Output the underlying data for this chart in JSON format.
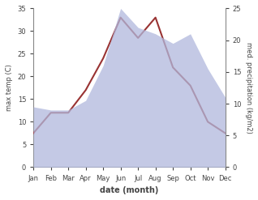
{
  "months": [
    "Jan",
    "Feb",
    "Mar",
    "Apr",
    "May",
    "Jun",
    "Jul",
    "Aug",
    "Sep",
    "Oct",
    "Nov",
    "Dec"
  ],
  "max_temp": [
    7.5,
    12.0,
    12.0,
    17.0,
    24.0,
    33.0,
    28.5,
    33.0,
    22.0,
    18.0,
    10.0,
    7.5
  ],
  "precipitation": [
    9.5,
    9.0,
    9.0,
    10.5,
    16.0,
    25.0,
    22.0,
    21.0,
    19.5,
    21.0,
    15.5,
    11.0
  ],
  "temp_color": "#993333",
  "precip_color": "#b0b8dd",
  "precip_fill_alpha": 0.75,
  "temp_ylim": [
    0,
    35
  ],
  "precip_ylim": [
    0,
    25
  ],
  "temp_yticks": [
    0,
    5,
    10,
    15,
    20,
    25,
    30,
    35
  ],
  "precip_yticks": [
    0,
    5,
    10,
    15,
    20,
    25
  ],
  "ylabel_left": "max temp (C)",
  "ylabel_right": "med. precipitation (kg/m2)",
  "xlabel": "date (month)",
  "bg_color": "#ffffff",
  "spine_color": "#888888",
  "tick_color": "#444444"
}
